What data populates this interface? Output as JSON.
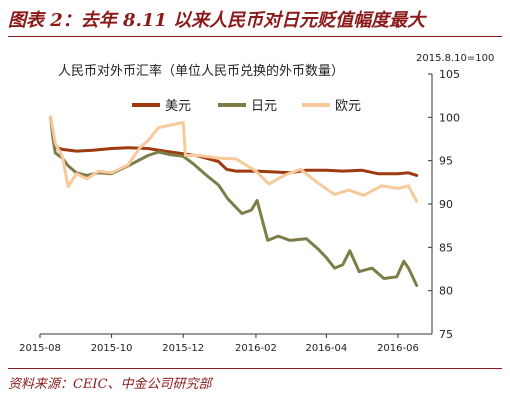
{
  "figure": {
    "title": "图表 2：去年 8.11 以来人民币对日元贬值幅度最大",
    "source": "资料来源：CEIC、中金公司研究部"
  },
  "chart_data": {
    "type": "line",
    "title": "人民币对外币汇率（单位人民币兑换的外币数量）",
    "base_note": "2015.8.10=100",
    "y_axis_position": "right",
    "ylim": [
      75,
      105
    ],
    "y_ticks": [
      75,
      80,
      85,
      90,
      95,
      100,
      105
    ],
    "x_tick_labels": [
      "2015-08",
      "2015-10",
      "2015-12",
      "2016-02",
      "2016-04",
      "2016-06"
    ],
    "x_tick_dates": [
      "2015-08-01",
      "2015-10-01",
      "2015-12-01",
      "2016-02-01",
      "2016-04-01",
      "2016-06-01"
    ],
    "xlim": [
      "2015-08-01",
      "2016-06-30"
    ],
    "grid": false,
    "legend_position": "top-center",
    "colors": {
      "usd": "#9e3a10",
      "jpy": "#7d7d4a",
      "eur": "#f8c99a",
      "accent": "#8b1a1a"
    },
    "series": [
      {
        "name": "美元",
        "color": "#9e3a10",
        "x": [
          "2015-08-10",
          "2015-08-12",
          "2015-08-14",
          "2015-08-20",
          "2015-09-01",
          "2015-09-15",
          "2015-10-01",
          "2015-10-15",
          "2015-11-01",
          "2015-11-15",
          "2015-12-01",
          "2015-12-15",
          "2015-12-31",
          "2016-01-07",
          "2016-01-15",
          "2016-02-01",
          "2016-02-15",
          "2016-03-01",
          "2016-03-15",
          "2016-04-01",
          "2016-04-15",
          "2016-05-01",
          "2016-05-15",
          "2016-06-01",
          "2016-06-10",
          "2016-06-17"
        ],
        "values": [
          100,
          98.1,
          96.6,
          96.3,
          96.1,
          96.2,
          96.4,
          96.5,
          96.4,
          96.1,
          95.8,
          95.5,
          94.9,
          94.0,
          93.8,
          93.8,
          93.7,
          93.6,
          93.9,
          93.9,
          93.8,
          93.9,
          93.5,
          93.5,
          93.6,
          93.3
        ]
      },
      {
        "name": "日元",
        "color": "#7d7d4a",
        "x": [
          "2015-08-10",
          "2015-08-12",
          "2015-08-14",
          "2015-08-20",
          "2015-08-25",
          "2015-09-01",
          "2015-09-10",
          "2015-09-20",
          "2015-10-01",
          "2015-10-15",
          "2015-11-01",
          "2015-11-10",
          "2015-11-20",
          "2015-12-01",
          "2015-12-10",
          "2015-12-20",
          "2015-12-31",
          "2016-01-08",
          "2016-01-20",
          "2016-01-28",
          "2016-02-02",
          "2016-02-11",
          "2016-02-20",
          "2016-03-01",
          "2016-03-15",
          "2016-03-25",
          "2016-04-01",
          "2016-04-08",
          "2016-04-15",
          "2016-04-21",
          "2016-04-29",
          "2016-05-10",
          "2016-05-20",
          "2016-05-31",
          "2016-06-06",
          "2016-06-10",
          "2016-06-17"
        ],
        "values": [
          100,
          97.6,
          95.9,
          95.3,
          94.4,
          93.6,
          93.3,
          93.6,
          93.5,
          94.4,
          95.6,
          96.0,
          95.7,
          95.5,
          94.6,
          93.4,
          92.2,
          90.6,
          88.9,
          89.3,
          90.4,
          85.8,
          86.3,
          85.8,
          86.0,
          84.8,
          83.8,
          82.6,
          83.0,
          84.6,
          82.2,
          82.6,
          81.4,
          81.6,
          83.4,
          82.6,
          80.6
        ]
      },
      {
        "name": "欧元",
        "color": "#f8c99a",
        "x": [
          "2015-08-10",
          "2015-08-12",
          "2015-08-14",
          "2015-08-20",
          "2015-08-25",
          "2015-09-01",
          "2015-09-10",
          "2015-09-20",
          "2015-10-01",
          "2015-10-15",
          "2015-10-25",
          "2015-11-01",
          "2015-11-10",
          "2015-11-20",
          "2015-12-01",
          "2015-12-03",
          "2015-12-15",
          "2015-12-31",
          "2016-01-15",
          "2016-02-01",
          "2016-02-12",
          "2016-02-25",
          "2016-03-10",
          "2016-03-25",
          "2016-04-08",
          "2016-04-20",
          "2016-05-03",
          "2016-05-18",
          "2016-06-01",
          "2016-06-10",
          "2016-06-17"
        ],
        "values": [
          100,
          98.6,
          97.0,
          95.5,
          92.0,
          93.5,
          92.9,
          93.8,
          93.6,
          94.5,
          96.5,
          97.3,
          98.8,
          99.1,
          99.4,
          95.6,
          95.6,
          95.3,
          95.2,
          93.8,
          92.3,
          93.3,
          94.0,
          92.4,
          91.1,
          91.6,
          91.0,
          92.1,
          91.8,
          92.1,
          90.3
        ]
      }
    ]
  }
}
